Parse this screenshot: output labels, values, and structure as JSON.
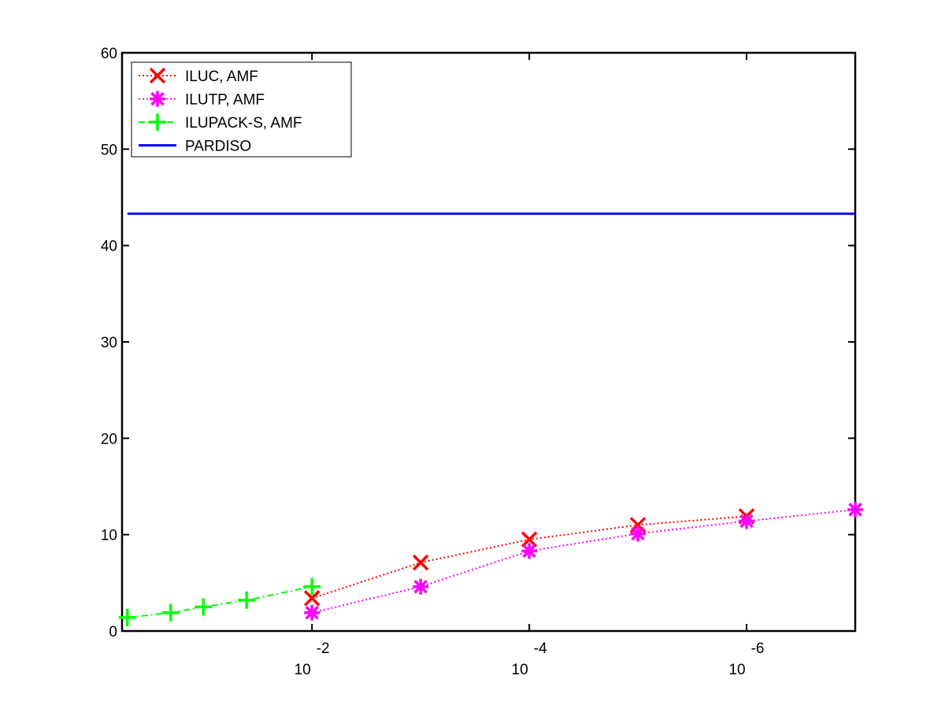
{
  "chart_data": {
    "type": "line",
    "x_scale": "log-reversed",
    "x_ticks": [
      {
        "x": 0.01,
        "base": "10",
        "exponent": "-2"
      },
      {
        "x": 0.0001,
        "base": "10",
        "exponent": "-4"
      },
      {
        "x": 1e-06,
        "base": "10",
        "exponent": "-6"
      }
    ],
    "xlim": [
      0.56,
      1e-07
    ],
    "ylim": [
      0,
      60
    ],
    "y_ticks": [
      "0",
      "10",
      "20",
      "30",
      "40",
      "50",
      "60"
    ],
    "grid": false,
    "legend_position": "top-left",
    "series": [
      {
        "name": "ILUC, AMF",
        "color": "#ff0000",
        "line_style": "dotted",
        "marker": "x",
        "x": [
          0.01,
          0.001,
          0.0001,
          1e-05,
          1e-06
        ],
        "y": [
          3.4,
          7.1,
          9.5,
          11.0,
          11.9
        ]
      },
      {
        "name": "ILUTP, AMF",
        "color": "#ff00ff",
        "line_style": "dotted",
        "marker": "asterisk",
        "x": [
          0.01,
          0.001,
          0.0001,
          1e-05,
          1e-06,
          1e-07
        ],
        "y": [
          1.9,
          4.6,
          8.3,
          10.1,
          11.4,
          12.6
        ]
      },
      {
        "name": "ILUPACK-S, AMF",
        "color": "#00ff00",
        "line_style": "dash-dot",
        "marker": "plus",
        "x": [
          0.5,
          0.2,
          0.1,
          0.04,
          0.01
        ],
        "y": [
          1.4,
          1.9,
          2.5,
          3.2,
          4.6
        ]
      },
      {
        "name": "PARDISO",
        "color": "#0000ff",
        "line_style": "solid",
        "marker": "none",
        "x": [
          0.5,
          1e-07
        ],
        "y": [
          43.3,
          43.3
        ]
      }
    ]
  }
}
